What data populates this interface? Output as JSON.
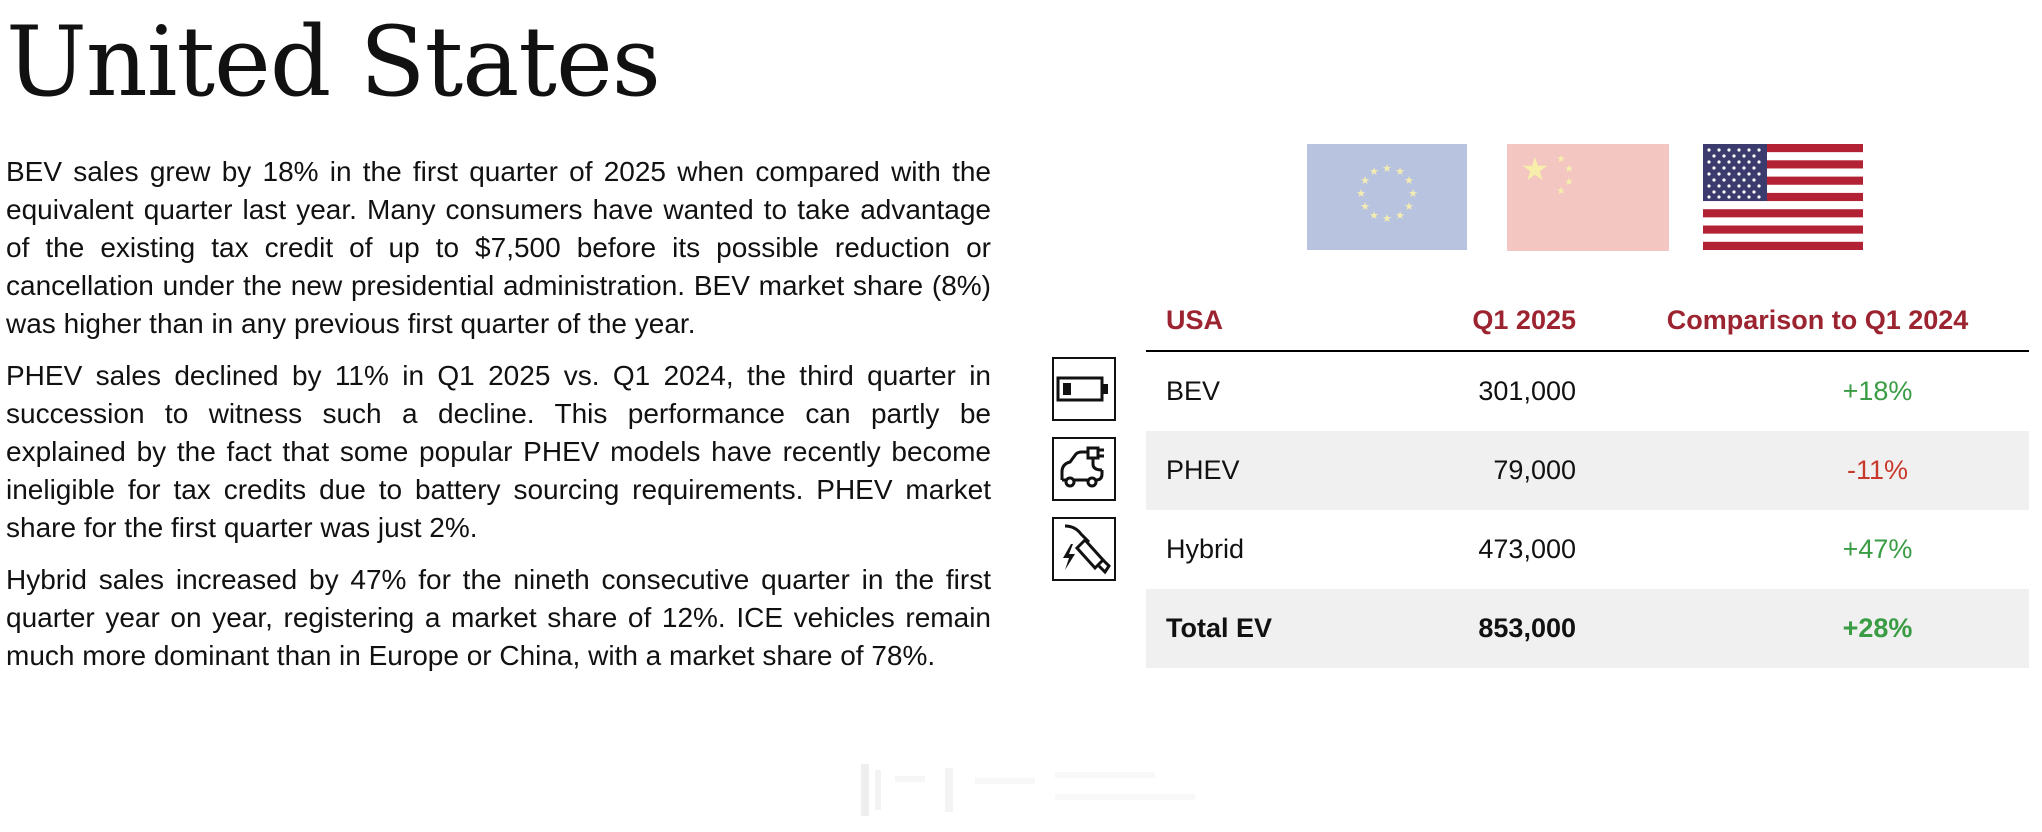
{
  "title": "United States",
  "paragraphs": [
    "BEV sales grew by 18% in the first quarter of 2025 when compared with the equivalent quarter last year. Many consumers have wanted to take advantage of the existing tax credit of up to $7,500 before its possible reduction or cancellation under the new presidential administration. BEV market share (8%) was higher than in any previous first quarter of the year.",
    "PHEV sales declined by 11% in Q1 2025 vs. Q1 2024, the third quarter in succession to witness such a decline. This performance can partly be explained by the fact that some popular PHEV models have recently become ineligible for tax credits due to battery sourcing requirements. PHEV market share for the first quarter was just 2%.",
    "Hybrid sales increased by 47% for the nineth consecutive quarter in the first quarter year on year, registering a market share of 12%. ICE vehicles remain much more dominant than in Europe or China, with a market share of 78%."
  ],
  "flags": [
    {
      "icon": "eu-flag-icon",
      "state": "faded"
    },
    {
      "icon": "china-flag-icon",
      "state": "faded"
    },
    {
      "icon": "usa-flag-icon",
      "state": "active"
    }
  ],
  "table": {
    "headers": {
      "region": "USA",
      "period": "Q1 2025",
      "comparison": "Comparison to Q1 2024"
    },
    "rows": [
      {
        "type": "BEV",
        "value": "301,000",
        "change": "+18%",
        "icon": "battery-icon"
      },
      {
        "type": "PHEV",
        "value": "79,000",
        "change": "-11%",
        "icon": "plug-car-icon"
      },
      {
        "type": "Hybrid",
        "value": "473,000",
        "change": "+47%",
        "icon": "fuel-pump-icon"
      },
      {
        "type": "Total EV",
        "value": "853,000",
        "change": "+28%"
      }
    ]
  },
  "colors": {
    "header_red": "#9b2430",
    "positive_green": "#3a9c44",
    "negative_red": "#c93a2e",
    "row_shade": "#f0f0f0"
  }
}
